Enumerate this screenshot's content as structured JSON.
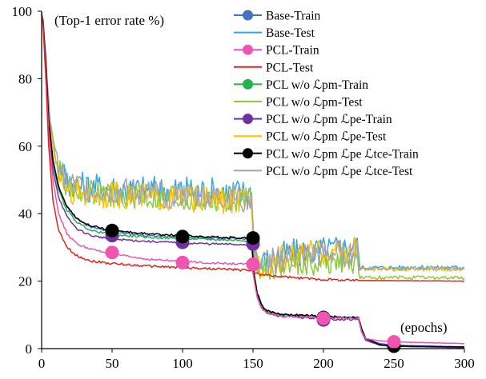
{
  "chart_data": {
    "type": "line",
    "title": "",
    "xlabel": "",
    "ylabel": "",
    "annotations": {
      "y_unit": "(Top-1 error rate %)",
      "x_unit": "(epochs)"
    },
    "xlim": [
      0,
      300
    ],
    "ylim": [
      0,
      100
    ],
    "x_ticks": [
      "0",
      "50",
      "100",
      "150",
      "200",
      "250",
      "300"
    ],
    "y_ticks": [
      "0",
      "20",
      "40",
      "60",
      "80",
      "100"
    ],
    "grid": false,
    "legend_position": "top-right",
    "marker_x": [
      50,
      100,
      150,
      200,
      250
    ],
    "series": [
      {
        "name": "Base-Train",
        "color": "#4472C4",
        "marker": true,
        "noise": 0.3,
        "points": [
          [
            0,
            99
          ],
          [
            1,
            97
          ],
          [
            3,
            86
          ],
          [
            5,
            68
          ],
          [
            8,
            56
          ],
          [
            12,
            48
          ],
          [
            18,
            42
          ],
          [
            25,
            38.5
          ],
          [
            35,
            36
          ],
          [
            50,
            34.5
          ],
          [
            75,
            33.5
          ],
          [
            100,
            33
          ],
          [
            125,
            32.8
          ],
          [
            149,
            32.5
          ],
          [
            151,
            21
          ],
          [
            153,
            16
          ],
          [
            156,
            12.5
          ],
          [
            160,
            11
          ],
          [
            170,
            10
          ],
          [
            200,
            9.4
          ],
          [
            225,
            9.2
          ],
          [
            227,
            6
          ],
          [
            230,
            3
          ],
          [
            240,
            1.5
          ],
          [
            250,
            1
          ],
          [
            300,
            0.5
          ]
        ],
        "markers": [
          34.5,
          33,
          32.5,
          9.2,
          1
        ]
      },
      {
        "name": "Base-Test",
        "color": "#2EA8E6",
        "marker": false,
        "noise": 4.5,
        "points": [
          [
            0,
            99
          ],
          [
            1,
            97
          ],
          [
            3,
            84
          ],
          [
            6,
            67
          ],
          [
            10,
            56
          ],
          [
            15,
            52
          ],
          [
            20,
            49
          ],
          [
            30,
            48
          ],
          [
            50,
            47.5
          ],
          [
            75,
            47
          ],
          [
            100,
            47
          ],
          [
            125,
            46.5
          ],
          [
            149,
            46
          ],
          [
            151,
            28
          ],
          [
            155,
            25
          ],
          [
            160,
            26
          ],
          [
            175,
            28
          ],
          [
            200,
            29
          ],
          [
            224,
            30
          ],
          [
            226,
            24
          ],
          [
            300,
            24
          ]
        ]
      },
      {
        "name": "PCL-Train",
        "color": "#F054B0",
        "marker": true,
        "noise": 0.3,
        "points": [
          [
            0,
            99
          ],
          [
            1,
            96
          ],
          [
            3,
            82
          ],
          [
            5,
            64
          ],
          [
            8,
            50
          ],
          [
            12,
            40
          ],
          [
            18,
            34
          ],
          [
            25,
            31
          ],
          [
            35,
            29.5
          ],
          [
            50,
            28
          ],
          [
            75,
            26.5
          ],
          [
            100,
            25.8
          ],
          [
            125,
            25.3
          ],
          [
            149,
            25
          ],
          [
            151,
            20
          ],
          [
            153,
            15
          ],
          [
            156,
            12
          ],
          [
            160,
            10.5
          ],
          [
            170,
            9.5
          ],
          [
            200,
            9.2
          ],
          [
            225,
            9
          ],
          [
            227,
            5
          ],
          [
            230,
            3
          ],
          [
            240,
            2.3
          ],
          [
            250,
            2
          ],
          [
            300,
            1.5
          ]
        ],
        "markers": [
          28.5,
          25.5,
          25,
          9,
          2
        ]
      },
      {
        "name": "PCL-Test",
        "color": "#E8211C",
        "marker": false,
        "noise": 0.35,
        "points": [
          [
            0,
            99
          ],
          [
            1,
            96
          ],
          [
            3,
            80
          ],
          [
            5,
            60
          ],
          [
            8,
            44
          ],
          [
            12,
            35
          ],
          [
            18,
            30
          ],
          [
            25,
            27.5
          ],
          [
            35,
            26
          ],
          [
            50,
            25.2
          ],
          [
            75,
            24.5
          ],
          [
            100,
            24
          ],
          [
            125,
            23.6
          ],
          [
            149,
            23.2
          ],
          [
            151,
            22.5
          ],
          [
            155,
            22
          ],
          [
            165,
            21.5
          ],
          [
            180,
            21
          ],
          [
            200,
            20.5
          ],
          [
            225,
            20.2
          ],
          [
            300,
            20
          ]
        ]
      },
      {
        "name": "PCL w/o ℒpm-Train",
        "color": "#1FB54C",
        "marker": true,
        "noise": 0.3,
        "points": [
          [
            0,
            99
          ],
          [
            1,
            97
          ],
          [
            3,
            85
          ],
          [
            5,
            67
          ],
          [
            8,
            55
          ],
          [
            12,
            47
          ],
          [
            18,
            41
          ],
          [
            25,
            37.5
          ],
          [
            35,
            35
          ],
          [
            50,
            33.8
          ],
          [
            75,
            33
          ],
          [
            100,
            32.6
          ],
          [
            125,
            32.3
          ],
          [
            149,
            32
          ],
          [
            151,
            21
          ],
          [
            153,
            16
          ],
          [
            156,
            12.5
          ],
          [
            160,
            11
          ],
          [
            170,
            10
          ],
          [
            200,
            9.3
          ],
          [
            225,
            9.1
          ],
          [
            227,
            5
          ],
          [
            230,
            2.5
          ],
          [
            240,
            1
          ],
          [
            250,
            0.7
          ],
          [
            300,
            0.3
          ]
        ],
        "markers": [
          34,
          32.6,
          32,
          9,
          0.7
        ]
      },
      {
        "name": "PCL w/o ℒpm-Test",
        "color": "#8CCB3C",
        "marker": false,
        "noise": 3.8,
        "points": [
          [
            0,
            99
          ],
          [
            1,
            97
          ],
          [
            3,
            84
          ],
          [
            6,
            66
          ],
          [
            10,
            55
          ],
          [
            15,
            50
          ],
          [
            20,
            48
          ],
          [
            30,
            46.5
          ],
          [
            50,
            45.5
          ],
          [
            75,
            45
          ],
          [
            100,
            44.5
          ],
          [
            125,
            44
          ],
          [
            149,
            43.5
          ],
          [
            151,
            26
          ],
          [
            155,
            23.5
          ],
          [
            160,
            24
          ],
          [
            175,
            25
          ],
          [
            200,
            25.5
          ],
          [
            224,
            26
          ],
          [
            226,
            21
          ],
          [
            300,
            21
          ]
        ]
      },
      {
        "name": "PCL w/o ℒpm ℒpe-Train",
        "color": "#7030A0",
        "marker": true,
        "noise": 0.3,
        "points": [
          [
            0,
            99
          ],
          [
            1,
            97
          ],
          [
            3,
            84
          ],
          [
            5,
            66
          ],
          [
            8,
            53
          ],
          [
            12,
            45
          ],
          [
            18,
            39
          ],
          [
            25,
            35.5
          ],
          [
            35,
            33.5
          ],
          [
            50,
            32.5
          ],
          [
            75,
            31.8
          ],
          [
            100,
            31.3
          ],
          [
            125,
            31
          ],
          [
            149,
            30.8
          ],
          [
            151,
            20.5
          ],
          [
            153,
            15.5
          ],
          [
            156,
            12
          ],
          [
            160,
            10.5
          ],
          [
            170,
            9.6
          ],
          [
            200,
            8.8
          ],
          [
            225,
            8.6
          ],
          [
            227,
            5
          ],
          [
            230,
            2.5
          ],
          [
            240,
            1
          ],
          [
            250,
            0.7
          ],
          [
            300,
            0.3
          ]
        ],
        "markers": [
          33.5,
          31.5,
          31,
          8.5,
          0.7
        ]
      },
      {
        "name": "PCL w/o ℒpm ℒpe-Test",
        "color": "#FFC000",
        "marker": false,
        "noise": 4,
        "points": [
          [
            0,
            99
          ],
          [
            1,
            97
          ],
          [
            3,
            84
          ],
          [
            6,
            66
          ],
          [
            10,
            55
          ],
          [
            15,
            50
          ],
          [
            20,
            47
          ],
          [
            30,
            46
          ],
          [
            50,
            45.5
          ],
          [
            75,
            45
          ],
          [
            100,
            44.5
          ],
          [
            125,
            44
          ],
          [
            149,
            43.5
          ],
          [
            151,
            27
          ],
          [
            155,
            24.5
          ],
          [
            160,
            25.5
          ],
          [
            175,
            27.5
          ],
          [
            200,
            28.5
          ],
          [
            224,
            29.5
          ],
          [
            226,
            23.5
          ],
          [
            300,
            23.5
          ]
        ]
      },
      {
        "name": "PCL w/o ℒpm ℒpe ℒtce-Train",
        "color": "#000000",
        "marker": true,
        "noise": 0.3,
        "points": [
          [
            0,
            99
          ],
          [
            1,
            97
          ],
          [
            3,
            85
          ],
          [
            5,
            68
          ],
          [
            8,
            56
          ],
          [
            12,
            48
          ],
          [
            18,
            42
          ],
          [
            25,
            38.5
          ],
          [
            35,
            36.5
          ],
          [
            50,
            35
          ],
          [
            75,
            34
          ],
          [
            100,
            33.5
          ],
          [
            125,
            33
          ],
          [
            149,
            32.8
          ],
          [
            151,
            21.5
          ],
          [
            153,
            16.5
          ],
          [
            156,
            13
          ],
          [
            160,
            11.2
          ],
          [
            170,
            10.2
          ],
          [
            200,
            9.5
          ],
          [
            225,
            9.2
          ],
          [
            227,
            6
          ],
          [
            230,
            3
          ],
          [
            240,
            1.2
          ],
          [
            250,
            0.8
          ],
          [
            300,
            0.5
          ]
        ],
        "markers": [
          35,
          33.2,
          32.8,
          9.2,
          0.8
        ]
      },
      {
        "name": "PCL w/o ℒpm ℒpe ℒtce-Test",
        "color": "#A6A6A6",
        "marker": false,
        "noise": 4.2,
        "points": [
          [
            0,
            99
          ],
          [
            1,
            97
          ],
          [
            3,
            85
          ],
          [
            6,
            68
          ],
          [
            10,
            58
          ],
          [
            15,
            52
          ],
          [
            20,
            49
          ],
          [
            30,
            47.5
          ],
          [
            50,
            46.5
          ],
          [
            75,
            46
          ],
          [
            100,
            45.5
          ],
          [
            125,
            45
          ],
          [
            149,
            44.5
          ],
          [
            151,
            27
          ],
          [
            155,
            24.5
          ],
          [
            160,
            25.5
          ],
          [
            175,
            27
          ],
          [
            200,
            28
          ],
          [
            224,
            28.5
          ],
          [
            226,
            23.8
          ],
          [
            300,
            23.8
          ]
        ]
      }
    ]
  }
}
